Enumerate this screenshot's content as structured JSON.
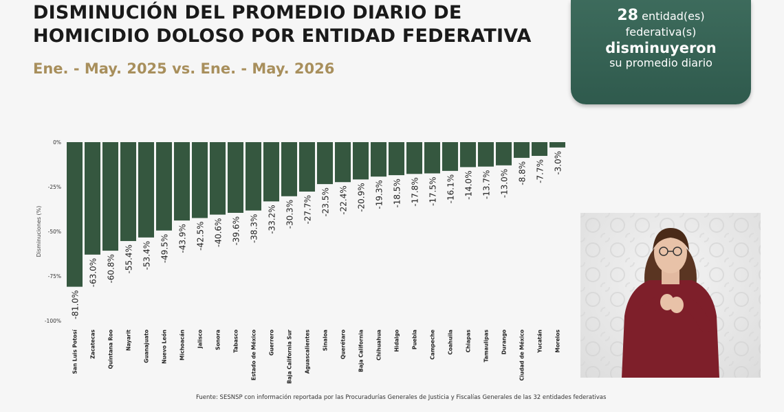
{
  "header": {
    "title_line1": "DISMINUCIÓN DEL PROMEDIO DIARIO DE",
    "title_line2": "HOMICIDIO DOLOSO POR ENTIDAD FEDERATIVA",
    "subtitle": "Ene. - May. 2025 vs. Ene. - May. 2026"
  },
  "callout": {
    "count": "28",
    "line1_rest": " entidad(es)",
    "line2": "federativa(s)",
    "line3": "disminuyeron",
    "line4": "su promedio diario"
  },
  "source": "Fuente: SESNSP con información reportada por las Procuradurías Generales de Justicia y Fiscalías Generales de las 32 entidades federativas",
  "colors": {
    "bar": "#35573f",
    "callout": "#2f5a4d",
    "subtitle": "#a88f5c"
  },
  "interpreter_video": {
    "icon": "sign-language-interpreter-video"
  },
  "chart_data": {
    "type": "bar",
    "title": "",
    "xlabel": "",
    "ylabel": "Disminuciones (%)",
    "ylim": [
      -100,
      0
    ],
    "yticks": [
      0,
      -25,
      -50,
      -75,
      -100
    ],
    "ytick_labels": [
      "0%",
      "-25%",
      "-50%",
      "-75%",
      "-100%"
    ],
    "grid": false,
    "categories": [
      "San Luis Potosí",
      "Zacatecas",
      "Quintana Roo",
      "Nayarit",
      "Guanajuato",
      "Nuevo León",
      "Michoacán",
      "Jalisco",
      "Sonora",
      "Tabasco",
      "Estado de México",
      "Guerrero",
      "Baja California Sur",
      "Aguascalientes",
      "Sinaloa",
      "Querétaro",
      "Baja California",
      "Chihuahua",
      "Hidalgo",
      "Puebla",
      "Campeche",
      "Coahuila",
      "Chiapas",
      "Tamaulipas",
      "Durango",
      "Ciudad de México",
      "Yucatán",
      "Morelos"
    ],
    "values": [
      -81.0,
      -63.0,
      -60.8,
      -55.4,
      -53.4,
      -49.5,
      -43.9,
      -42.5,
      -40.6,
      -39.6,
      -38.3,
      -33.2,
      -30.3,
      -27.7,
      -23.5,
      -22.4,
      -20.9,
      -19.3,
      -18.5,
      -17.8,
      -17.5,
      -16.1,
      -14.0,
      -13.7,
      -13.0,
      -8.8,
      -7.7,
      -3.0
    ],
    "value_labels": [
      "-81.0%",
      "-63.0%",
      "-60.8%",
      "-55.4%",
      "-53.4%",
      "-49.5%",
      "-43.9%",
      "-42.5%",
      "-40.6%",
      "-39.6%",
      "-38.3%",
      "-33.2%",
      "-30.3%",
      "-27.7%",
      "-23.5%",
      "-22.4%",
      "-20.9%",
      "-19.3%",
      "-18.5%",
      "-17.8%",
      "-17.5%",
      "-16.1%",
      "-14.0%",
      "-13.7%",
      "-13.0%",
      "-8.8%",
      "-7.7%",
      "-3.0%"
    ]
  }
}
